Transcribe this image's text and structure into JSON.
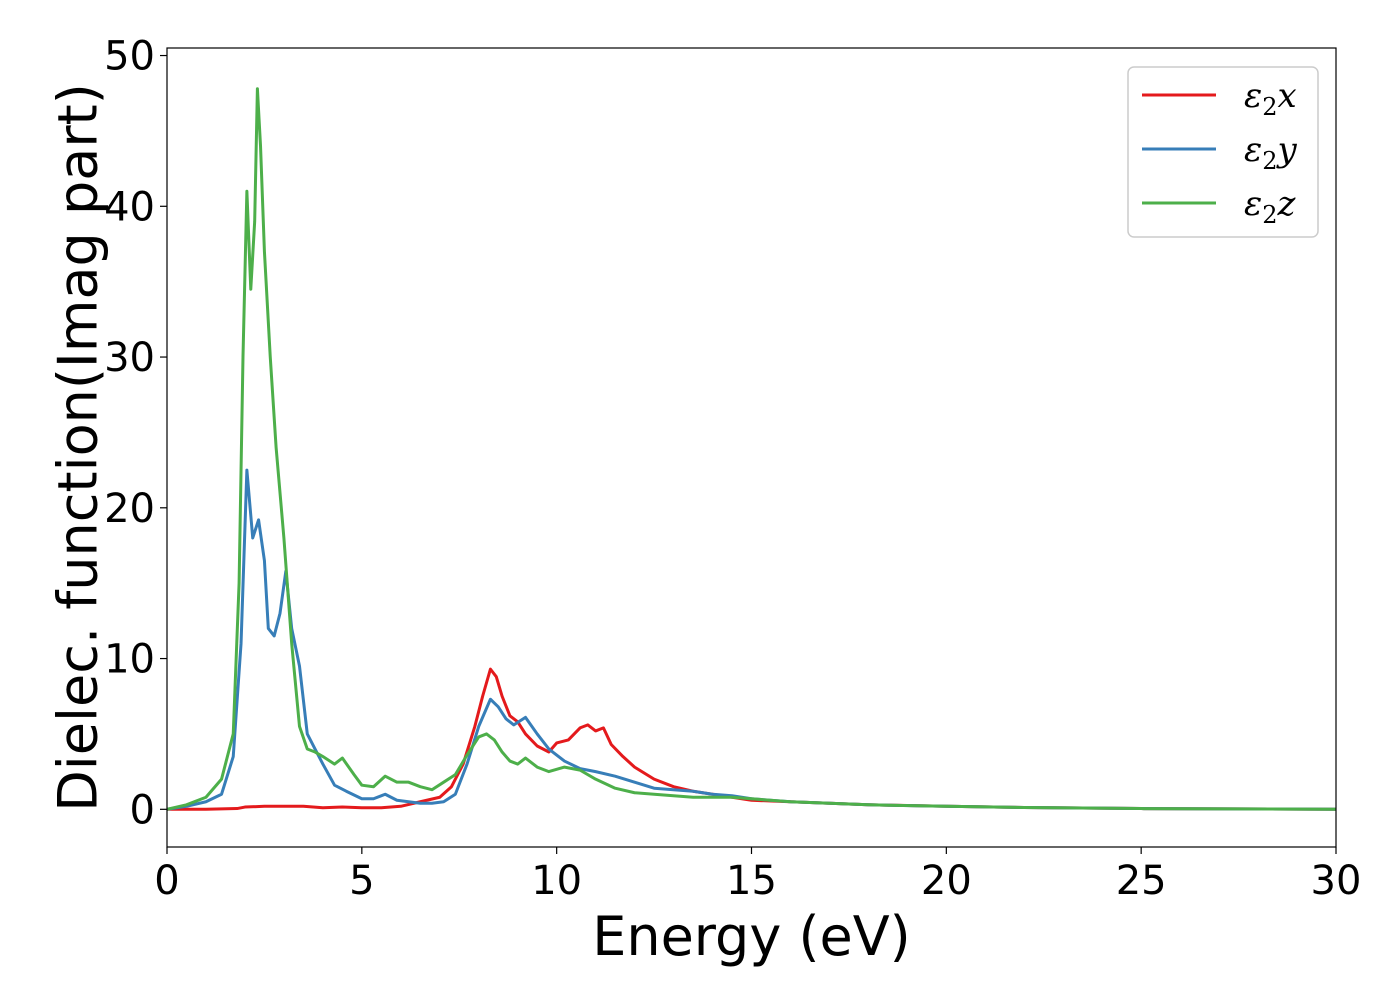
{
  "chart_data": {
    "type": "line",
    "title": "",
    "xlabel": "Energy (eV)",
    "ylabel": "Dielec. function(Imag part)",
    "xlim": [
      0,
      30
    ],
    "ylim": [
      -2.5,
      50.5
    ],
    "xticks": [
      0,
      5,
      10,
      15,
      20,
      25,
      30
    ],
    "xtick_labels": [
      "0",
      "5",
      "10",
      "15",
      "20",
      "25",
      "30"
    ],
    "yticks": [
      0,
      10,
      20,
      30,
      40,
      50
    ],
    "ytick_labels": [
      "0",
      "10",
      "20",
      "30",
      "40",
      "50"
    ],
    "grid": false,
    "legend_position": "top-right",
    "series": [
      {
        "name": "ε₂x",
        "legend_base": "ε",
        "legend_sub": "2",
        "legend_suffix": "x",
        "color": "#e41a1c",
        "x": [
          0,
          1,
          1.8,
          2.0,
          2.5,
          3.0,
          3.5,
          4.0,
          4.5,
          5.0,
          5.5,
          6.0,
          6.5,
          7.0,
          7.3,
          7.6,
          7.9,
          8.1,
          8.3,
          8.45,
          8.6,
          8.8,
          9.0,
          9.2,
          9.5,
          9.8,
          10.0,
          10.3,
          10.6,
          10.8,
          11.0,
          11.2,
          11.4,
          11.7,
          12.0,
          12.5,
          13.0,
          13.5,
          14.0,
          14.5,
          15.0,
          16.0,
          17.0,
          18.0,
          19.0,
          20.0,
          22.0,
          25.0,
          30.0
        ],
        "values": [
          0.0,
          0.0,
          0.05,
          0.15,
          0.2,
          0.2,
          0.2,
          0.1,
          0.15,
          0.1,
          0.1,
          0.2,
          0.5,
          0.8,
          1.5,
          3.0,
          5.5,
          7.5,
          9.3,
          8.8,
          7.5,
          6.2,
          5.8,
          5.0,
          4.2,
          3.8,
          4.4,
          4.6,
          5.4,
          5.6,
          5.2,
          5.4,
          4.3,
          3.5,
          2.8,
          2.0,
          1.5,
          1.2,
          1.0,
          0.8,
          0.6,
          0.5,
          0.4,
          0.3,
          0.25,
          0.2,
          0.12,
          0.05,
          0.0
        ]
      },
      {
        "name": "ε₂y",
        "legend_base": "ε",
        "legend_sub": "2",
        "legend_suffix": "y",
        "color": "#377eb8",
        "x": [
          0,
          0.5,
          1.0,
          1.4,
          1.7,
          1.9,
          2.05,
          2.2,
          2.35,
          2.5,
          2.6,
          2.75,
          2.9,
          3.05,
          3.2,
          3.4,
          3.6,
          3.8,
          4.0,
          4.3,
          4.6,
          5.0,
          5.3,
          5.6,
          5.9,
          6.2,
          6.5,
          6.8,
          7.1,
          7.4,
          7.7,
          8.0,
          8.3,
          8.5,
          8.7,
          8.9,
          9.2,
          9.5,
          9.8,
          10.2,
          10.6,
          11.0,
          11.5,
          12.0,
          12.5,
          13.0,
          13.5,
          14.0,
          14.5,
          15.0,
          16.0,
          17.0,
          18.0,
          20.0,
          22.0,
          25.0,
          30.0
        ],
        "values": [
          0.0,
          0.2,
          0.5,
          1.0,
          3.5,
          11.0,
          22.5,
          18.0,
          19.2,
          16.5,
          12.0,
          11.5,
          13.0,
          15.8,
          12.0,
          9.5,
          5.0,
          4.0,
          3.0,
          1.6,
          1.2,
          0.7,
          0.7,
          1.0,
          0.6,
          0.5,
          0.4,
          0.4,
          0.5,
          1.0,
          3.0,
          5.5,
          7.3,
          6.8,
          6.0,
          5.6,
          6.1,
          5.0,
          4.0,
          3.2,
          2.7,
          2.5,
          2.2,
          1.8,
          1.4,
          1.3,
          1.2,
          1.0,
          0.9,
          0.7,
          0.5,
          0.4,
          0.3,
          0.2,
          0.12,
          0.05,
          0.0
        ]
      },
      {
        "name": "ε₂z",
        "legend_base": "ε",
        "legend_sub": "2",
        "legend_suffix": "z",
        "color": "#4daf4a",
        "x": [
          0,
          0.5,
          1.0,
          1.4,
          1.7,
          1.85,
          1.95,
          2.05,
          2.15,
          2.25,
          2.32,
          2.4,
          2.5,
          2.65,
          2.8,
          3.0,
          3.2,
          3.4,
          3.6,
          3.8,
          4.0,
          4.3,
          4.5,
          4.8,
          5.0,
          5.3,
          5.6,
          5.9,
          6.2,
          6.5,
          6.8,
          7.1,
          7.4,
          7.7,
          8.0,
          8.2,
          8.4,
          8.6,
          8.8,
          9.0,
          9.2,
          9.5,
          9.8,
          10.2,
          10.6,
          11.0,
          11.5,
          12.0,
          12.5,
          13.0,
          13.5,
          14.0,
          14.5,
          15.0,
          16.0,
          17.0,
          18.0,
          20.0,
          22.0,
          25.0,
          30.0
        ],
        "values": [
          0.0,
          0.3,
          0.8,
          2.0,
          5.0,
          15.0,
          30.0,
          41.0,
          34.5,
          39.0,
          47.8,
          44.0,
          37.0,
          30.0,
          24.0,
          18.0,
          11.0,
          5.5,
          4.0,
          3.8,
          3.5,
          3.0,
          3.4,
          2.3,
          1.6,
          1.5,
          2.2,
          1.8,
          1.8,
          1.5,
          1.3,
          1.8,
          2.3,
          3.6,
          4.8,
          5.0,
          4.6,
          3.8,
          3.2,
          3.0,
          3.4,
          2.8,
          2.5,
          2.8,
          2.6,
          2.0,
          1.4,
          1.1,
          1.0,
          0.9,
          0.8,
          0.8,
          0.8,
          0.7,
          0.5,
          0.4,
          0.3,
          0.2,
          0.12,
          0.05,
          0.0
        ]
      }
    ]
  }
}
